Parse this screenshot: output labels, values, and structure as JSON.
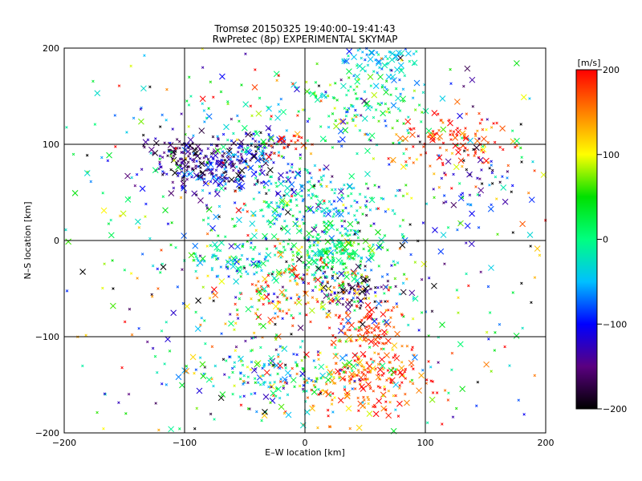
{
  "chart_data": {
    "type": "scatter",
    "title": "Tromsø 20150325 19:40:00–19:41:43",
    "subtitle": "RwPretec (8p) EXPERIMENTAL SKYMAP",
    "xlabel": "E–W location [km]",
    "ylabel": "N–S location [km]",
    "xlim": [
      -200,
      200
    ],
    "ylim": [
      -200,
      200
    ],
    "x_ticks": [
      "−200",
      "−100",
      "0",
      "100",
      "200"
    ],
    "y_ticks": [
      "−200",
      "−100",
      "0",
      "100",
      "200"
    ],
    "grid": true,
    "colorbar": {
      "label": "[m/s]",
      "range": [
        -200,
        200
      ],
      "ticks": [
        "200",
        "100",
        "0",
        "−100",
        "−200"
      ],
      "colormap": [
        "#000000",
        "#5a0080",
        "#0000ff",
        "#00c0ff",
        "#00ff80",
        "#00e000",
        "#ffff00",
        "#ff8000",
        "#ff0000"
      ]
    },
    "clusters": [
      {
        "name": "c01",
        "x": -70,
        "y": 75,
        "sx": 28,
        "sy": 14,
        "n": 260,
        "v": -130,
        "sv": 45
      },
      {
        "name": "c02",
        "x": -100,
        "y": 90,
        "sx": 18,
        "sy": 10,
        "n": 80,
        "v": -160,
        "sv": 30
      },
      {
        "name": "c03",
        "x": -40,
        "y": 100,
        "sx": 15,
        "sy": 12,
        "n": 50,
        "v": -80,
        "sv": 80
      },
      {
        "name": "c04",
        "x": -15,
        "y": 100,
        "sx": 8,
        "sy": 5,
        "n": 25,
        "v": 190,
        "sv": 15
      },
      {
        "name": "c05",
        "x": 0,
        "y": 40,
        "sx": 30,
        "sy": 20,
        "n": 180,
        "v": -30,
        "sv": 40
      },
      {
        "name": "c06",
        "x": 20,
        "y": -10,
        "sx": 20,
        "sy": 12,
        "n": 160,
        "v": 10,
        "sv": 30
      },
      {
        "name": "c07",
        "x": -60,
        "y": -20,
        "sx": 20,
        "sy": 10,
        "n": 90,
        "v": -20,
        "sv": 40
      },
      {
        "name": "c08",
        "x": 40,
        "y": -50,
        "sx": 15,
        "sy": 10,
        "n": 80,
        "v": -180,
        "sv": 25
      },
      {
        "name": "c09",
        "x": 20,
        "y": -40,
        "sx": 25,
        "sy": 15,
        "n": 120,
        "v": 40,
        "sv": 100
      },
      {
        "name": "c10",
        "x": 50,
        "y": -90,
        "sx": 15,
        "sy": 15,
        "n": 90,
        "v": 180,
        "sv": 30
      },
      {
        "name": "c11",
        "x": 50,
        "y": -145,
        "sx": 30,
        "sy": 18,
        "n": 220,
        "v": 170,
        "sv": 45
      },
      {
        "name": "c12",
        "x": -20,
        "y": -140,
        "sx": 35,
        "sy": 15,
        "n": 160,
        "v": -20,
        "sv": 70
      },
      {
        "name": "c13",
        "x": 60,
        "y": 185,
        "sx": 15,
        "sy": 12,
        "n": 80,
        "v": -40,
        "sv": 25
      },
      {
        "name": "c14",
        "x": 40,
        "y": 140,
        "sx": 30,
        "sy": 20,
        "n": 110,
        "v": 10,
        "sv": 50
      },
      {
        "name": "c15",
        "x": 120,
        "y": 105,
        "sx": 25,
        "sy": 15,
        "n": 110,
        "v": 180,
        "sv": 30
      },
      {
        "name": "c16",
        "x": 150,
        "y": 70,
        "sx": 20,
        "sy": 20,
        "n": 40,
        "v": -150,
        "sv": 60
      },
      {
        "name": "c17",
        "x": -20,
        "y": -60,
        "sx": 25,
        "sy": 15,
        "n": 80,
        "v": 150,
        "sv": 70
      },
      {
        "name": "c18",
        "x": 0,
        "y": 0,
        "sx": 120,
        "sy": 120,
        "n": 900,
        "v": 0,
        "sv": 110
      }
    ]
  }
}
